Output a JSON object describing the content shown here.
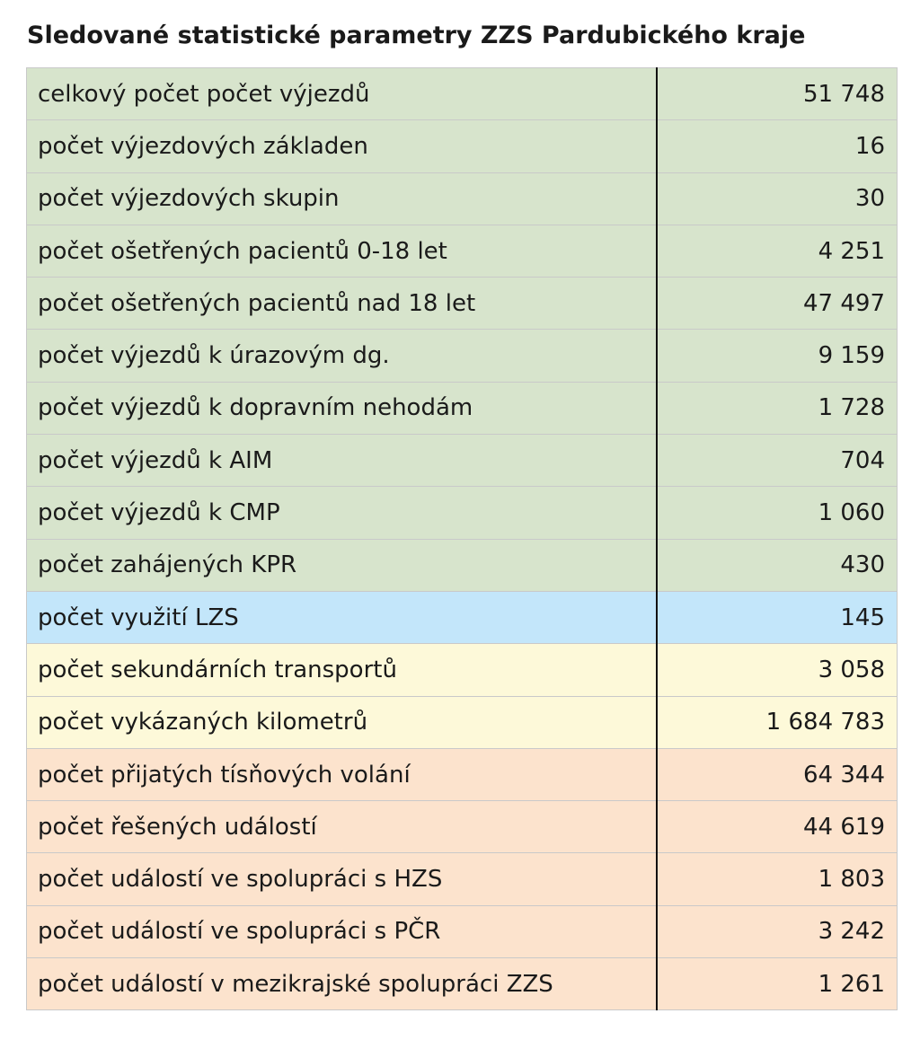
{
  "title": "Sledované statistické parametry ZZS Pardubického kraje",
  "colors": {
    "green": "#d7e4cc",
    "blue": "#c3e6fa",
    "yellow": "#fdf9d9",
    "orange": "#fce3cd"
  },
  "rows": [
    {
      "label": "celkový počet počet výjezdů",
      "value": "51 748",
      "group": "green"
    },
    {
      "label": "počet výjezdových základen",
      "value": "16",
      "group": "green"
    },
    {
      "label": "počet výjezdových skupin",
      "value": "30",
      "group": "green"
    },
    {
      "label": "počet ošetřených pacientů 0-18 let",
      "value": "4 251",
      "group": "green"
    },
    {
      "label": "počet ošetřených pacientů nad 18 let",
      "value": "47 497",
      "group": "green"
    },
    {
      "label": "počet výjezdů k úrazovým dg.",
      "value": "9 159",
      "group": "green"
    },
    {
      "label": "počet výjezdů k dopravním nehodám",
      "value": "1 728",
      "group": "green"
    },
    {
      "label": "počet výjezdů k AIM",
      "value": "704",
      "group": "green"
    },
    {
      "label": "počet výjezdů k CMP",
      "value": "1 060",
      "group": "green"
    },
    {
      "label": "počet zahájených KPR",
      "value": "430",
      "group": "green"
    },
    {
      "label": "počet využití LZS",
      "value": "145",
      "group": "blue"
    },
    {
      "label": "počet sekundárních transportů",
      "value": "3 058",
      "group": "yellow"
    },
    {
      "label": "počet vykázaných kilometrů",
      "value": "1 684 783",
      "group": "yellow"
    },
    {
      "label": "počet přijatých tísňových volání",
      "value": "64 344",
      "group": "orange"
    },
    {
      "label": "počet řešených událostí",
      "value": "44 619",
      "group": "orange"
    },
    {
      "label": "počet událostí ve spolupráci s HZS",
      "value": "1 803",
      "group": "orange"
    },
    {
      "label": "počet událostí ve spolupráci s PČR",
      "value": "3 242",
      "group": "orange"
    },
    {
      "label": "počet událostí v mezikrajské spolupráci ZZS",
      "value": "1 261",
      "group": "orange"
    }
  ]
}
